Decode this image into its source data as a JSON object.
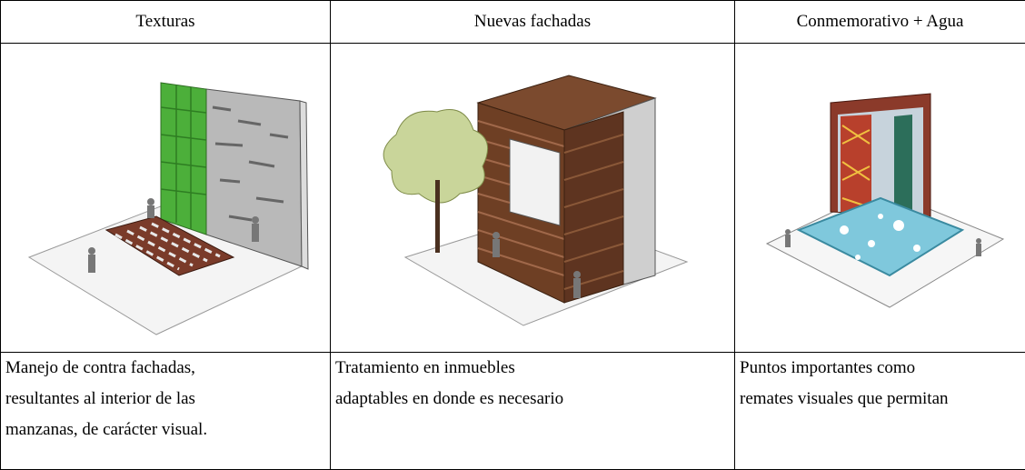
{
  "table": {
    "headers": [
      "Texturas",
      "Nuevas fachadas",
      "Conmemorativo + Agua"
    ],
    "descriptions": [
      [
        "Manejo de contra fachadas,",
        "resultantes al interior de las",
        "manzanas, de carácter visual."
      ],
      [
        "Tratamiento en inmuebles",
        "adaptables en donde es necesario"
      ],
      [
        "Puntos importantes como",
        "remates visuales que permitan"
      ]
    ]
  }
}
